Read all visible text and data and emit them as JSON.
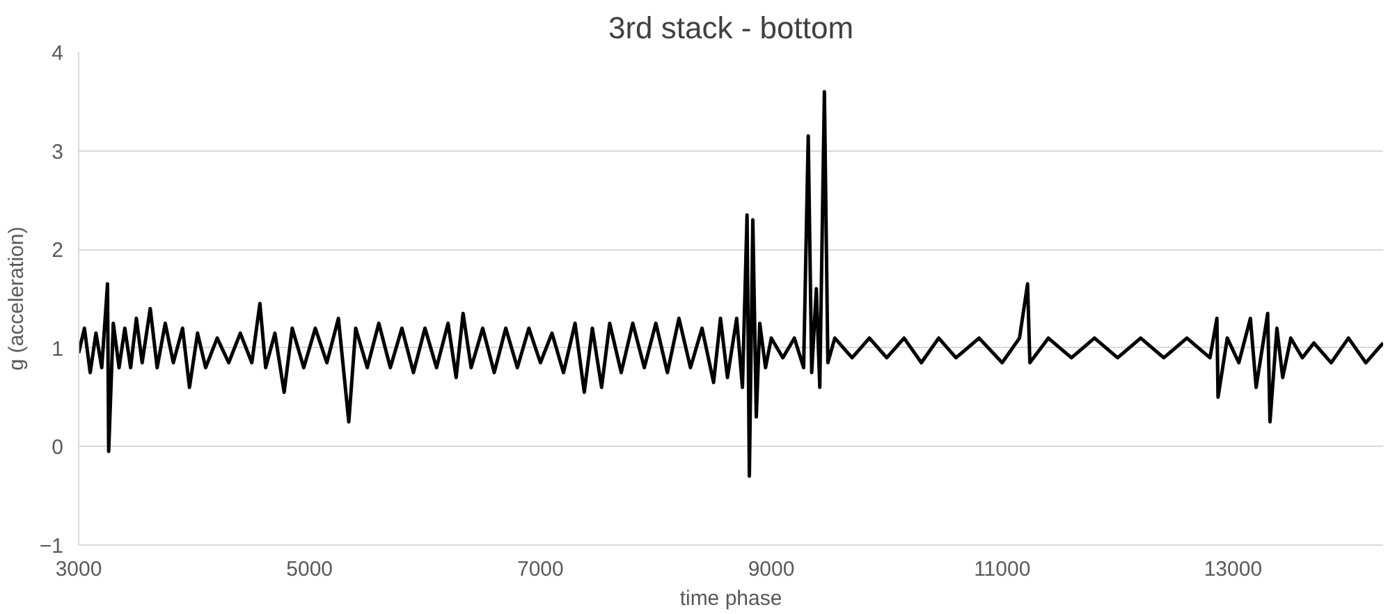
{
  "chart_data": {
    "type": "line",
    "title": "3rd stack - bottom",
    "xlabel": "time phase",
    "ylabel": "g (acceleration)",
    "xlim": [
      3000,
      14300
    ],
    "xticks": [
      3000,
      5000,
      7000,
      9000,
      11000,
      13000
    ],
    "ylim": [
      -1,
      4
    ],
    "yticks": [
      -1,
      0,
      1,
      2,
      3,
      4
    ],
    "grid": "y",
    "marker": "none",
    "line_style": "solid",
    "series": [
      {
        "color": "#000000",
        "x": [
          3000,
          3050,
          3100,
          3150,
          3200,
          3250,
          3260,
          3300,
          3350,
          3400,
          3450,
          3500,
          3550,
          3620,
          3680,
          3750,
          3820,
          3900,
          3960,
          4030,
          4100,
          4200,
          4300,
          4400,
          4500,
          4570,
          4620,
          4700,
          4780,
          4850,
          4950,
          5050,
          5150,
          5250,
          5340,
          5400,
          5500,
          5600,
          5700,
          5800,
          5900,
          6000,
          6100,
          6200,
          6270,
          6330,
          6400,
          6500,
          6600,
          6700,
          6800,
          6900,
          7000,
          7100,
          7200,
          7300,
          7380,
          7450,
          7530,
          7600,
          7700,
          7800,
          7900,
          8000,
          8100,
          8200,
          8300,
          8400,
          8500,
          8560,
          8620,
          8700,
          8750,
          8790,
          8810,
          8840,
          8870,
          8900,
          8950,
          9000,
          9100,
          9200,
          9280,
          9320,
          9350,
          9390,
          9420,
          9460,
          9490,
          9550,
          9700,
          9850,
          10000,
          10150,
          10300,
          10450,
          10600,
          10800,
          11000,
          11150,
          11220,
          11240,
          11400,
          11600,
          11800,
          12000,
          12200,
          12400,
          12600,
          12800,
          12860,
          12870,
          12950,
          13050,
          13150,
          13200,
          13300,
          13320,
          13380,
          13430,
          13500,
          13600,
          13700,
          13850,
          14000,
          14150,
          14300
        ],
        "values": [
          0.95,
          1.2,
          0.75,
          1.15,
          0.8,
          1.65,
          -0.05,
          1.25,
          0.8,
          1.2,
          0.8,
          1.3,
          0.85,
          1.4,
          0.8,
          1.25,
          0.85,
          1.2,
          0.6,
          1.15,
          0.8,
          1.1,
          0.85,
          1.15,
          0.85,
          1.45,
          0.8,
          1.15,
          0.55,
          1.2,
          0.8,
          1.2,
          0.85,
          1.3,
          0.25,
          1.2,
          0.8,
          1.25,
          0.8,
          1.2,
          0.75,
          1.2,
          0.8,
          1.25,
          0.7,
          1.35,
          0.8,
          1.2,
          0.75,
          1.2,
          0.8,
          1.2,
          0.85,
          1.15,
          0.75,
          1.25,
          0.55,
          1.2,
          0.6,
          1.25,
          0.75,
          1.25,
          0.8,
          1.25,
          0.75,
          1.3,
          0.8,
          1.2,
          0.65,
          1.3,
          0.7,
          1.3,
          0.6,
          2.35,
          -0.3,
          2.3,
          0.3,
          1.25,
          0.8,
          1.1,
          0.9,
          1.1,
          0.8,
          3.15,
          0.75,
          1.6,
          0.6,
          3.6,
          0.85,
          1.1,
          0.9,
          1.1,
          0.9,
          1.1,
          0.85,
          1.1,
          0.9,
          1.1,
          0.85,
          1.1,
          1.65,
          0.85,
          1.1,
          0.9,
          1.1,
          0.9,
          1.1,
          0.9,
          1.1,
          0.9,
          1.3,
          0.5,
          1.1,
          0.85,
          1.3,
          0.6,
          1.35,
          0.25,
          1.2,
          0.7,
          1.1,
          0.9,
          1.05,
          0.85,
          1.1,
          0.85,
          1.05
        ]
      }
    ]
  }
}
